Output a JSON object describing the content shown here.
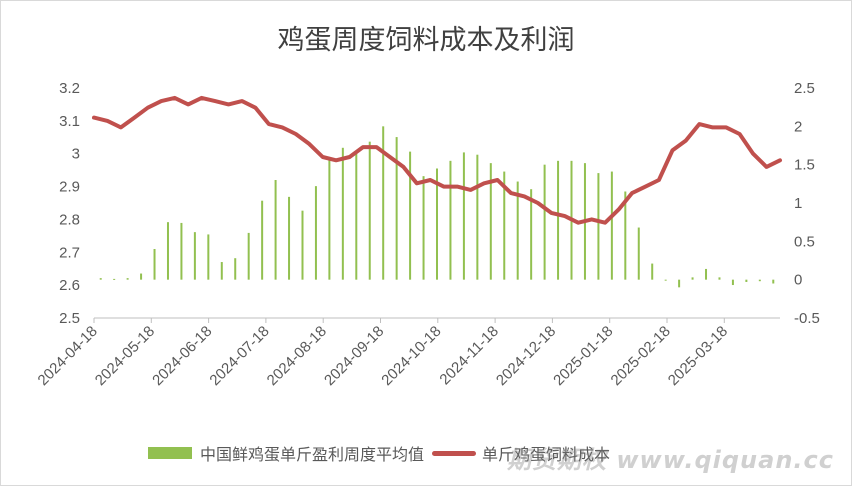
{
  "chart_data": {
    "type": "bar+line",
    "title": "鸡蛋周度饲料成本及利润",
    "x_ticks": [
      "2024-04-18",
      "2024-05-18",
      "2024-06-18",
      "2024-07-18",
      "2024-08-18",
      "2024-09-18",
      "2024-10-18",
      "2024-11-18",
      "2024-12-18",
      "2025-01-18",
      "2025-02-18",
      "2025-03-18"
    ],
    "y_left": {
      "min": 2.5,
      "max": 3.2,
      "ticks": [
        "2.5",
        "2.6",
        "2.7",
        "2.8",
        "2.9",
        "3",
        "3.1",
        "3.2"
      ]
    },
    "y_right": {
      "min": -0.5,
      "max": 2.5,
      "ticks": [
        "-0.5",
        "0",
        "0.5",
        "1",
        "1.5",
        "2",
        "2.5"
      ]
    },
    "bar_series": {
      "name": "中国鲜鸡蛋单斤盈利周度平均值",
      "axis": "right",
      "color": "#92c050",
      "values": [
        0.02,
        0.01,
        0.02,
        0.08,
        0.4,
        0.75,
        0.74,
        0.62,
        0.59,
        0.23,
        0.28,
        0.61,
        1.03,
        1.3,
        1.08,
        0.9,
        1.22,
        1.6,
        1.72,
        1.66,
        1.8,
        2.0,
        1.86,
        1.67,
        1.35,
        1.45,
        1.55,
        1.66,
        1.63,
        1.52,
        1.41,
        1.28,
        1.18,
        1.5,
        1.55,
        1.55,
        1.52,
        1.39,
        1.41,
        1.15,
        0.68,
        0.21,
        0.0,
        -0.1,
        0.03,
        0.14,
        0.03,
        -0.07,
        -0.03,
        -0.02,
        -0.05
      ]
    },
    "line_series": {
      "name": "单斤鸡蛋饲料成本",
      "axis": "left",
      "color": "#c0504d",
      "values": [
        3.11,
        3.1,
        3.08,
        3.11,
        3.14,
        3.16,
        3.17,
        3.15,
        3.17,
        3.16,
        3.15,
        3.16,
        3.14,
        3.09,
        3.08,
        3.06,
        3.03,
        2.99,
        2.98,
        2.99,
        3.02,
        3.02,
        2.99,
        2.96,
        2.91,
        2.92,
        2.9,
        2.9,
        2.89,
        2.91,
        2.92,
        2.88,
        2.87,
        2.85,
        2.82,
        2.81,
        2.79,
        2.8,
        2.79,
        2.83,
        2.88,
        2.9,
        2.92,
        3.01,
        3.04,
        3.09,
        3.08,
        3.08,
        3.06,
        3.0,
        2.96,
        2.98
      ]
    },
    "legend": {
      "position": "bottom"
    },
    "grid": false
  },
  "watermark": "期货期权 www.qiquan.cc"
}
